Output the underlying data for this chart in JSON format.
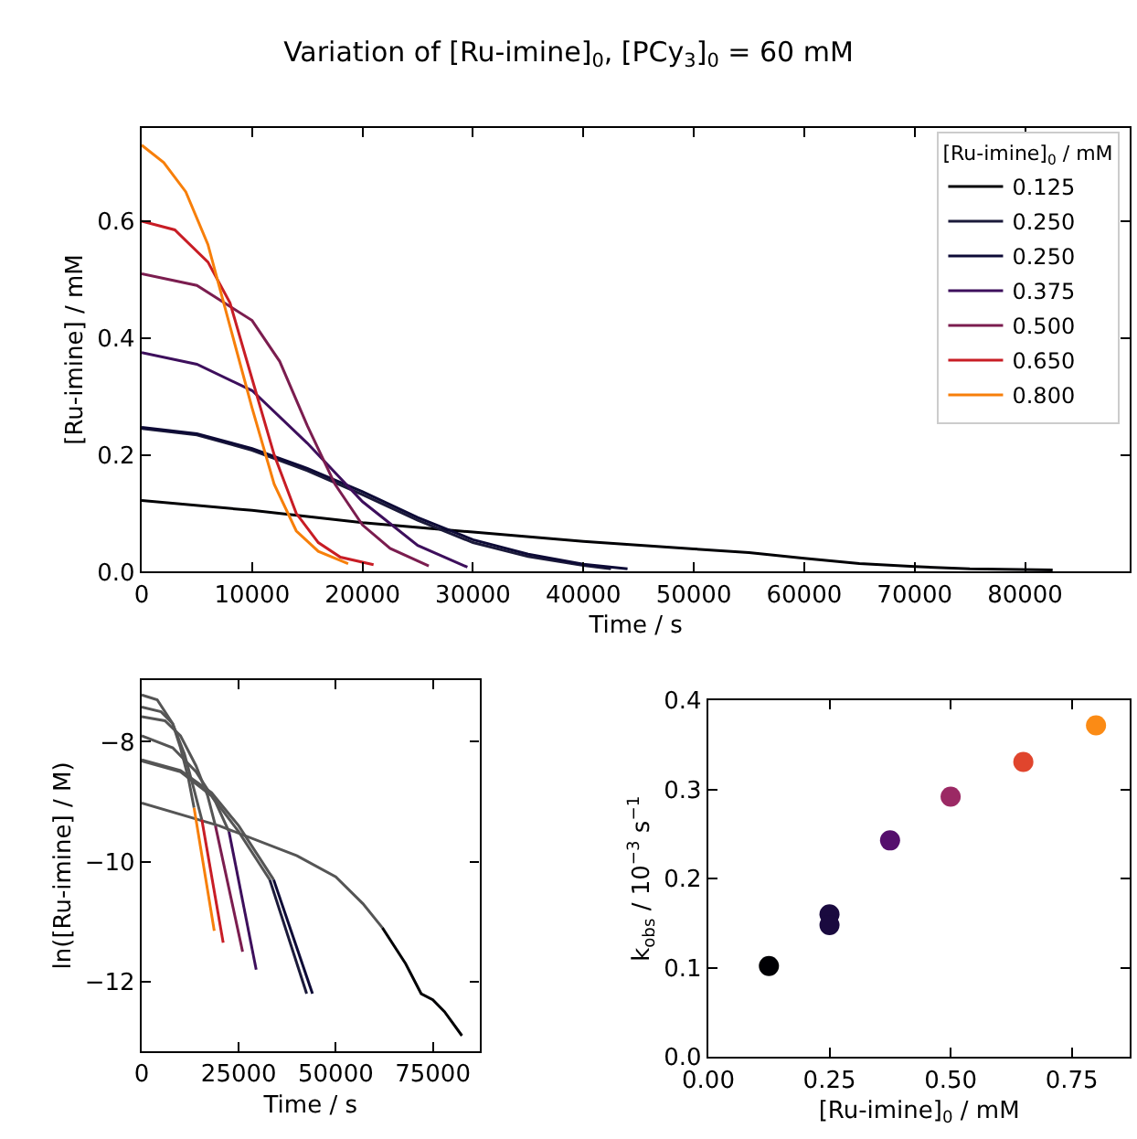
{
  "chart_data": [
    {
      "type": "line",
      "title": "Variation of [Ru-imine]$_{0}$, [PCy$_{3}$]$_{0}$ = 60 mM",
      "xlabel": "Time / s",
      "ylabel": "[Ru-imine] / mM",
      "legend_title": "[Ru-imine]$_{0}$ / mM",
      "legend": "top right",
      "marker": "none",
      "line_style": "solid",
      "xlim": [
        0,
        89500
      ],
      "ylim": [
        0,
        0.76
      ],
      "xticks": [
        0,
        10000,
        20000,
        30000,
        40000,
        50000,
        60000,
        70000,
        80000
      ],
      "yticks": [
        {
          "value": 0,
          "label": "0.0"
        },
        {
          "value": 0.2,
          "label": "0.2"
        },
        {
          "value": 0.4,
          "label": "0.4"
        },
        {
          "value": 0.6,
          "label": "0.6"
        }
      ],
      "series": [
        {
          "name": "0.125",
          "color": "#000004",
          "x": [
            0,
            10000,
            20000,
            30000,
            40000,
            50000,
            55000,
            60000,
            65000,
            70000,
            75000,
            82500
          ],
          "values": [
            0.122,
            0.105,
            0.084,
            0.068,
            0.052,
            0.039,
            0.033,
            0.023,
            0.014,
            0.009,
            0.005,
            0.003
          ]
        },
        {
          "name": "0.250",
          "color": "#1b1a3a",
          "x": [
            0,
            5000,
            10000,
            15000,
            20000,
            25000,
            30000,
            35000,
            40000,
            42500
          ],
          "values": [
            0.245,
            0.234,
            0.208,
            0.173,
            0.132,
            0.088,
            0.05,
            0.026,
            0.011,
            0.005
          ]
        },
        {
          "name": "0.250",
          "color": "#0d0a36",
          "x": [
            0,
            5000,
            10000,
            15000,
            20000,
            25000,
            30000,
            35000,
            40000,
            44000
          ],
          "values": [
            0.247,
            0.236,
            0.211,
            0.177,
            0.137,
            0.093,
            0.055,
            0.03,
            0.013,
            0.005
          ]
        },
        {
          "name": "0.375",
          "color": "#3d0f5c",
          "x": [
            0,
            5000,
            10000,
            15000,
            20000,
            25000,
            29500
          ],
          "values": [
            0.375,
            0.355,
            0.31,
            0.22,
            0.12,
            0.045,
            0.008
          ]
        },
        {
          "name": "0.500",
          "color": "#7b1d4f",
          "x": [
            0,
            5000,
            10000,
            12500,
            15000,
            17500,
            20000,
            22500,
            26000
          ],
          "values": [
            0.51,
            0.49,
            0.43,
            0.36,
            0.25,
            0.15,
            0.08,
            0.04,
            0.01
          ]
        },
        {
          "name": "0.650",
          "color": "#c81d25",
          "x": [
            0,
            3000,
            6000,
            8000,
            10000,
            12000,
            14000,
            16000,
            18000,
            21000
          ],
          "values": [
            0.6,
            0.585,
            0.53,
            0.46,
            0.33,
            0.2,
            0.1,
            0.05,
            0.025,
            0.012
          ]
        },
        {
          "name": "0.800",
          "color": "#f77f0a",
          "x": [
            0,
            2000,
            4000,
            6000,
            8000,
            10000,
            12000,
            14000,
            16000,
            18700
          ],
          "values": [
            0.73,
            0.7,
            0.65,
            0.56,
            0.42,
            0.28,
            0.15,
            0.07,
            0.035,
            0.014
          ]
        }
      ]
    },
    {
      "type": "line",
      "xlabel": "Time / s",
      "ylabel": "ln([Ru-imine] / M)",
      "marker": "none",
      "line_style": "solid",
      "xlim": [
        0,
        87000
      ],
      "ylim": [
        -13.16,
        -6.97
      ],
      "xticks": [
        0,
        25000,
        50000,
        75000
      ],
      "yticks": [
        {
          "value": -8,
          "label": "−8"
        },
        {
          "value": -10,
          "label": "−10"
        },
        {
          "value": -12,
          "label": "−12"
        }
      ],
      "series": [
        {
          "color": "#555555",
          "x": [
            0,
            4000,
            8000,
            10000,
            12000,
            13500
          ],
          "values": [
            -7.22,
            -7.3,
            -7.7,
            -8.1,
            -8.6,
            -9.1
          ]
        },
        {
          "color": "#555555",
          "x": [
            0,
            5000,
            8000,
            11000,
            13500,
            15500
          ],
          "values": [
            -7.42,
            -7.5,
            -7.7,
            -8.2,
            -8.8,
            -9.3
          ]
        },
        {
          "color": "#555555",
          "x": [
            0,
            6000,
            10000,
            14000,
            17000,
            19000
          ],
          "values": [
            -7.58,
            -7.65,
            -7.9,
            -8.4,
            -8.9,
            -9.4
          ]
        },
        {
          "color": "#555555",
          "x": [
            0,
            8000,
            14000,
            19000,
            22500
          ],
          "values": [
            -7.9,
            -8.1,
            -8.5,
            -9.0,
            -9.5
          ]
        },
        {
          "color": "#555555",
          "x": [
            0,
            10000,
            18000,
            25000,
            30000,
            33000
          ],
          "values": [
            -8.32,
            -8.5,
            -8.9,
            -9.5,
            -10.0,
            -10.3
          ]
        },
        {
          "color": "#555555",
          "x": [
            0,
            10000,
            18000,
            25000,
            30000,
            34000
          ],
          "values": [
            -8.3,
            -8.48,
            -8.85,
            -9.4,
            -9.9,
            -10.3
          ]
        },
        {
          "color": "#555555",
          "x": [
            0,
            20000,
            40000,
            50000,
            57000,
            62000
          ],
          "values": [
            -9.02,
            -9.4,
            -9.9,
            -10.25,
            -10.7,
            -11.1
          ]
        },
        {
          "color": "#f77f0a",
          "x": [
            13500,
            18700
          ],
          "values": [
            -9.1,
            -11.15
          ]
        },
        {
          "color": "#c81d25",
          "x": [
            15500,
            21000
          ],
          "values": [
            -9.3,
            -11.35
          ]
        },
        {
          "color": "#7b1d4f",
          "x": [
            19000,
            26000
          ],
          "values": [
            -9.4,
            -11.5
          ]
        },
        {
          "color": "#3d0f5c",
          "x": [
            22500,
            29500
          ],
          "values": [
            -9.5,
            -11.8
          ]
        },
        {
          "color": "#1b1a3a",
          "x": [
            33000,
            42500
          ],
          "values": [
            -10.3,
            -12.2
          ]
        },
        {
          "color": "#0d0a36",
          "x": [
            34000,
            44000
          ],
          "values": [
            -10.3,
            -12.2
          ]
        },
        {
          "color": "#000004",
          "x": [
            62000,
            68000,
            72000,
            75000,
            78000,
            82500
          ],
          "values": [
            -11.1,
            -11.7,
            -12.2,
            -12.3,
            -12.5,
            -12.9
          ]
        }
      ]
    },
    {
      "type": "scatter",
      "xlabel": "[Ru-imine]$_{0}$ / mM",
      "ylabel": "k$_{obs}$ / 10$^{−3}$ s$^{−1}$",
      "marker": "circle",
      "xlim": [
        0,
        0.87
      ],
      "ylim": [
        0,
        0.4
      ],
      "xticks": [
        {
          "value": 0,
          "label": "0.00"
        },
        {
          "value": 0.25,
          "label": "0.25"
        },
        {
          "value": 0.5,
          "label": "0.50"
        },
        {
          "value": 0.75,
          "label": "0.75"
        }
      ],
      "yticks": [
        {
          "value": 0,
          "label": "0.0"
        },
        {
          "value": 0.1,
          "label": "0.1"
        },
        {
          "value": 0.2,
          "label": "0.2"
        },
        {
          "value": 0.3,
          "label": "0.3"
        },
        {
          "value": 0.4,
          "label": "0.4"
        }
      ],
      "series": [
        {
          "x": [
            0.125,
            0.25,
            0.25,
            0.375,
            0.5,
            0.65,
            0.8
          ],
          "values": [
            0.102,
            0.16,
            0.148,
            0.243,
            0.292,
            0.331,
            0.372
          ],
          "colors": [
            "#000004",
            "#1a0a3f",
            "#1a0a3f",
            "#550f6d",
            "#9b2964",
            "#e0452d",
            "#fb8b15"
          ]
        }
      ]
    }
  ]
}
